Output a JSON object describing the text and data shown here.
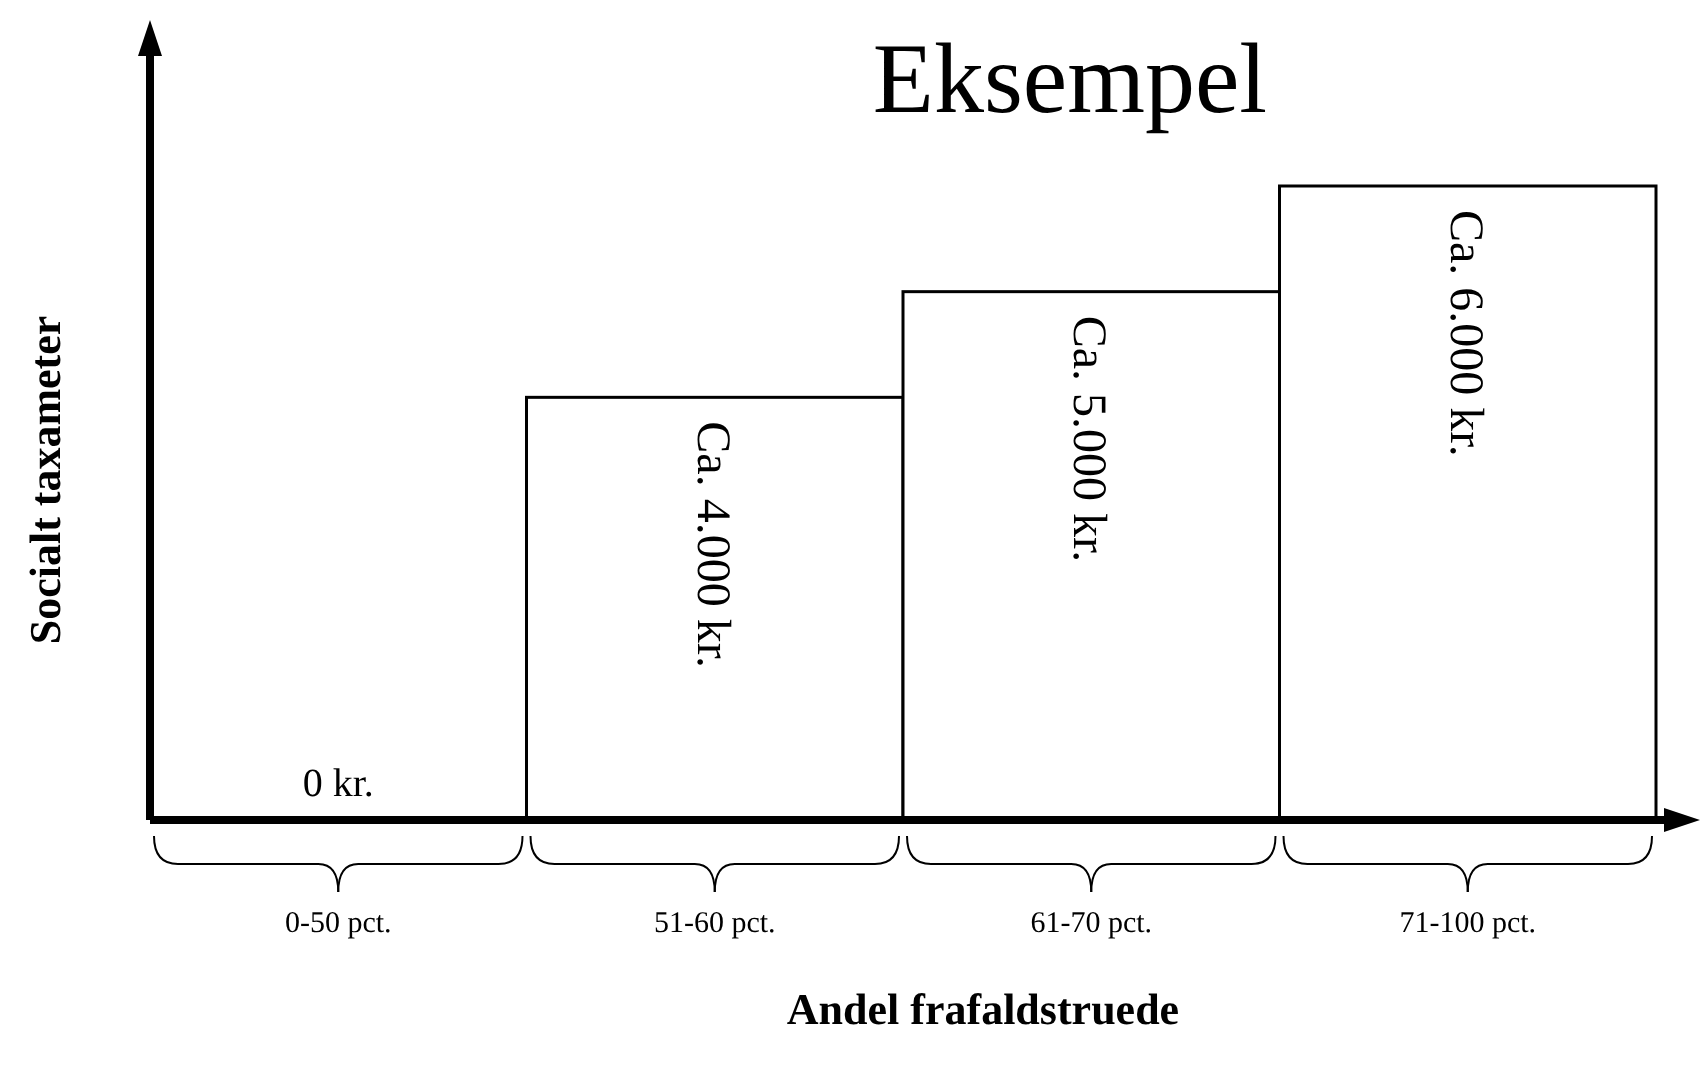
{
  "chart_data": {
    "type": "bar",
    "title": "Eksempel",
    "xlabel": "Andel frafaldstruede",
    "ylabel": "Socialt taxameter",
    "categories": [
      "0-50 pct.",
      "51-60 pct.",
      "61-70 pct.",
      "71-100 pct."
    ],
    "values": [
      0,
      4000,
      5000,
      6000
    ],
    "value_labels": [
      "0 kr.",
      "Ca. 4.000 kr.",
      "Ca. 5.000 kr.",
      "Ca. 6.000 kr."
    ],
    "color": "#ffffff"
  }
}
